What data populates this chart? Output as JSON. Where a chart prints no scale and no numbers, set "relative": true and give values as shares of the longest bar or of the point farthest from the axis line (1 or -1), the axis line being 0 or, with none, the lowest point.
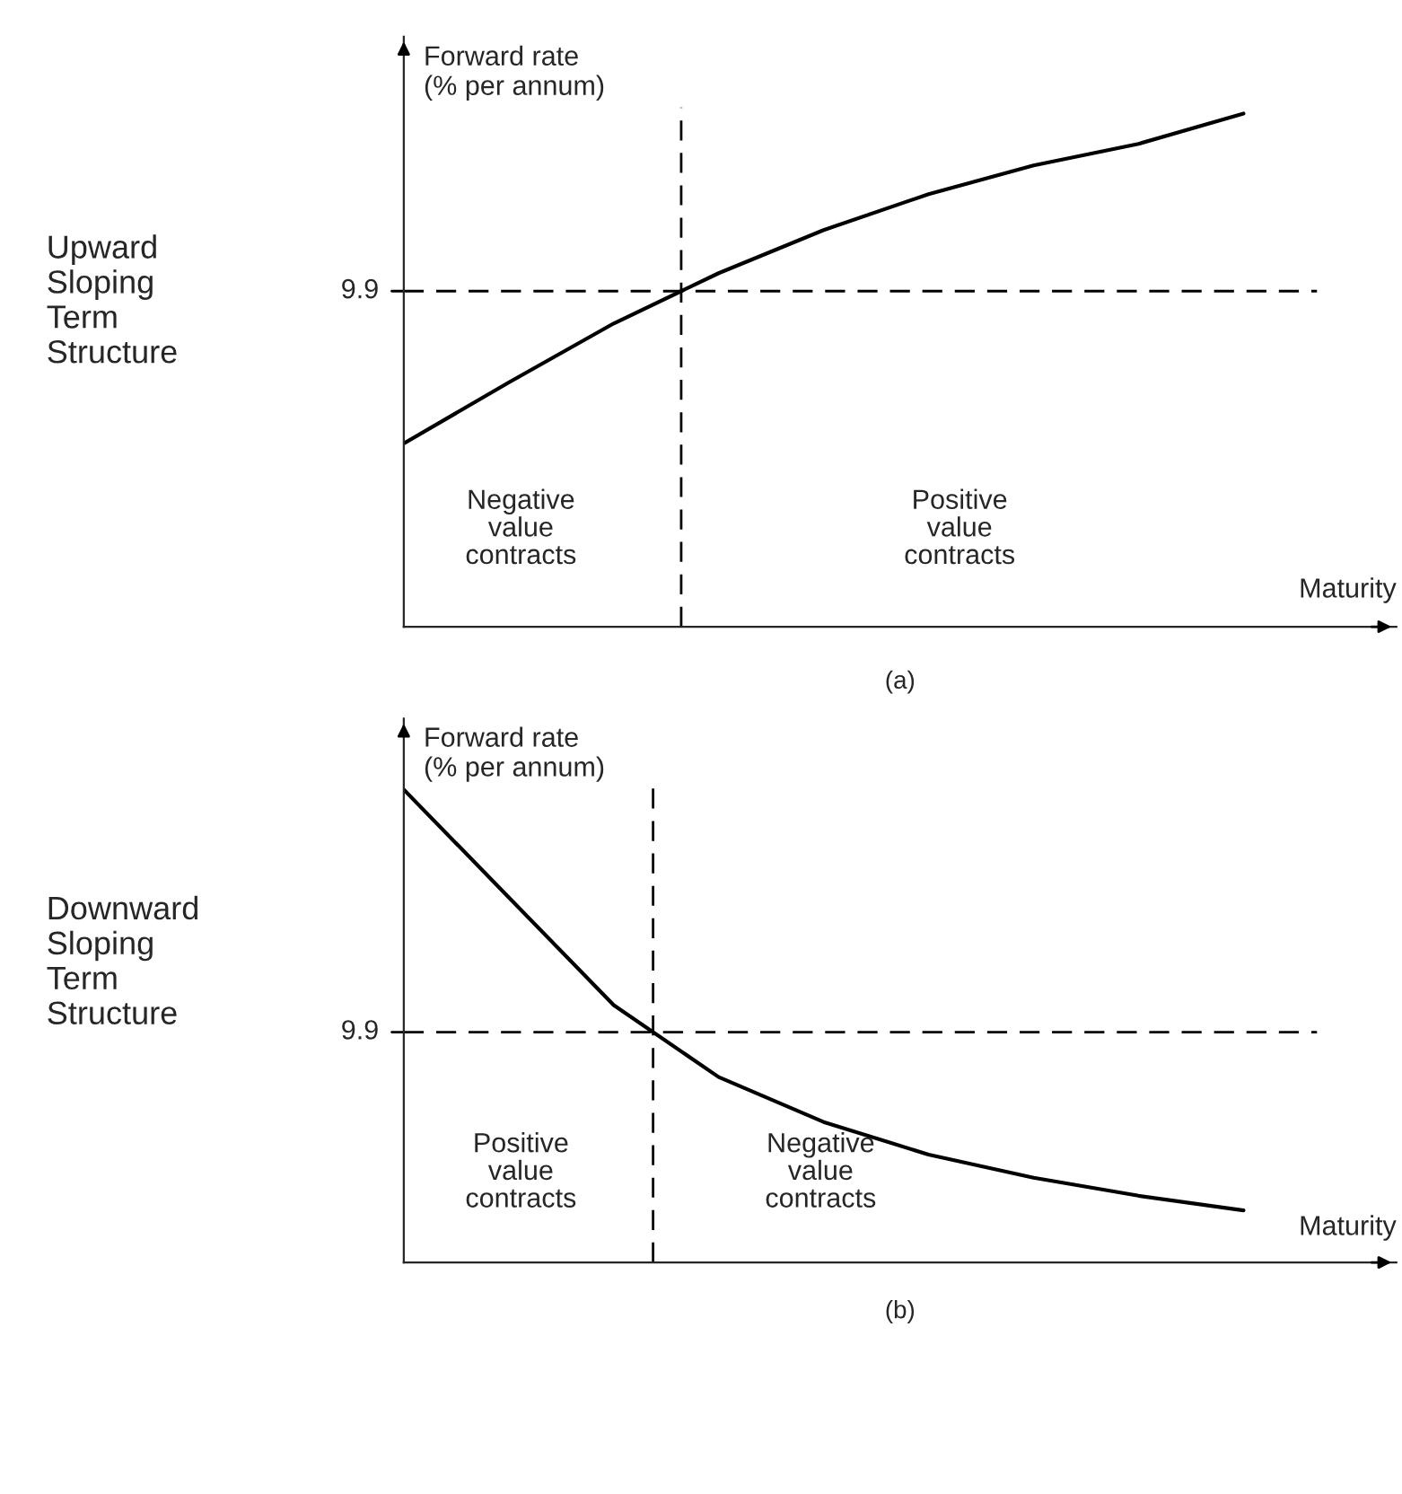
{
  "chart_data": [
    {
      "type": "line",
      "relative": true,
      "title": "(a)",
      "xlabel": "Maturity",
      "ylabel": "Forward rate\n(% per annum)",
      "categories": [
        null,
        null,
        null,
        null,
        null,
        null,
        null,
        null,
        null
      ],
      "series": [
        {
          "color": "#000000",
          "values": [
            0.357,
            0.476,
            0.591,
            0.689,
            0.773,
            0.843,
            0.899,
            0.941,
            1
          ]
        }
      ],
      "ref_lines": [
        {
          "axis": "y",
          "value": 0.654,
          "line_style": "dashed"
        }
      ],
      "annotations": [
        "Upward\nSloping\nTerm\nStructure",
        "9.9",
        "Negative\nvalue\ncontracts",
        "Positive\nvalue\ncontracts"
      ]
    },
    {
      "type": "line",
      "relative": true,
      "title": "(b)",
      "xlabel": "Maturity",
      "ylabel": "Forward rate\n(% per annum)",
      "categories": [
        null,
        null,
        null,
        null,
        null,
        null,
        null,
        null,
        null
      ],
      "series": [
        {
          "color": "#000000",
          "values": [
            1,
            0.772,
            0.544,
            0.392,
            0.297,
            0.228,
            0.179,
            0.141,
            0.11
          ]
        }
      ],
      "ref_lines": [
        {
          "axis": "y",
          "value": 0.487,
          "line_style": "dashed"
        }
      ],
      "annotations": [
        "Downward\nSloping\nTerm\nStructure",
        "9.9",
        "Positive\nvalue\ncontracts",
        "Negative\nvalue\ncontracts"
      ]
    }
  ]
}
